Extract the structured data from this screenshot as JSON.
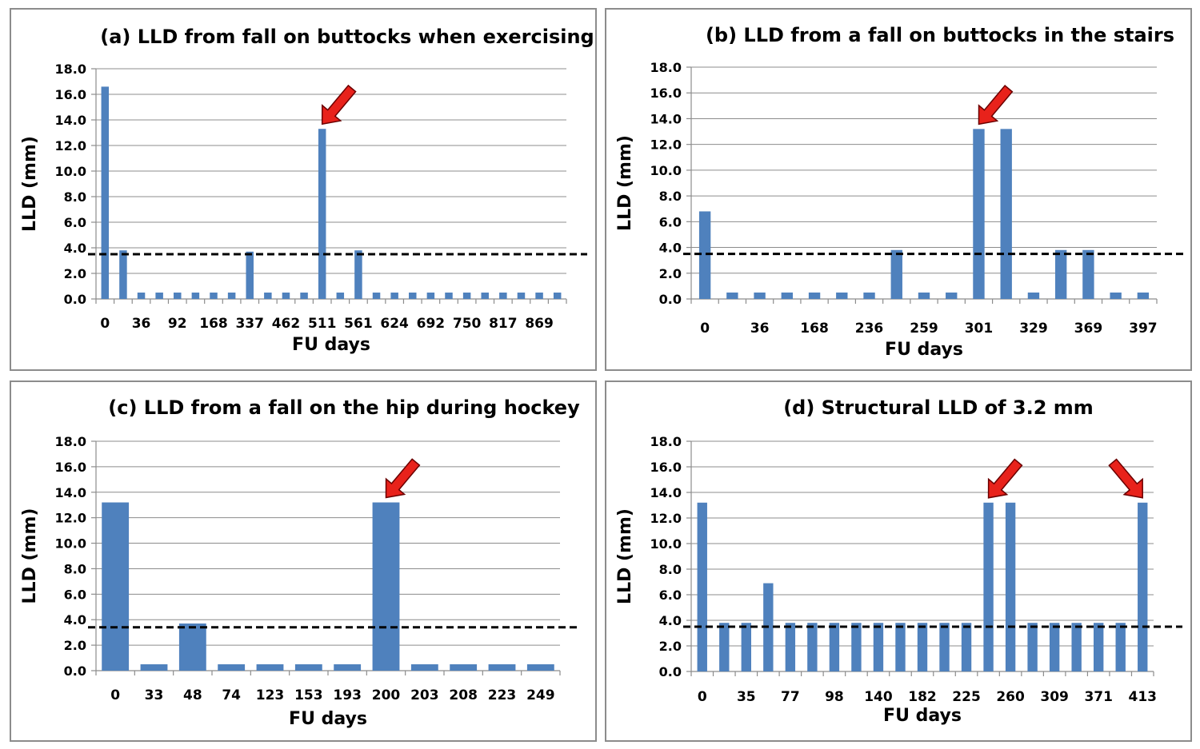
{
  "chart_data": [
    {
      "id": "a",
      "type": "bar",
      "title": "(a) LLD from fall on buttocks when exercising",
      "xlabel": "FU days",
      "ylabel": "LLD (mm)",
      "ylim": [
        0,
        18
      ],
      "yticks": [
        "0.0",
        "2.0",
        "4.0",
        "6.0",
        "8.0",
        "10.0",
        "12.0",
        "14.0",
        "16.0",
        "18.0"
      ],
      "categories": [
        "0",
        "",
        "36",
        "",
        "92",
        "",
        "168",
        "",
        "337",
        "",
        "462",
        "",
        "511",
        "",
        "561",
        "",
        "624",
        "",
        "692",
        "",
        "750",
        "",
        "817",
        "",
        "869",
        ""
      ],
      "values": [
        16.6,
        3.8,
        0.5,
        0.5,
        0.5,
        0.5,
        0.5,
        0.5,
        3.7,
        0.5,
        0.5,
        0.5,
        13.3,
        0.5,
        3.8,
        0.5,
        0.5,
        0.5,
        0.5,
        0.5,
        0.5,
        0.5,
        0.5,
        0.5,
        0.5,
        0.5
      ],
      "threshold": 3.5,
      "arrows": [
        12
      ]
    },
    {
      "id": "b",
      "type": "bar",
      "title": "(b) LLD from a fall on buttocks in the stairs",
      "xlabel": "FU days",
      "ylabel": "LLD (mm)",
      "ylim": [
        0,
        18
      ],
      "yticks": [
        "0.0",
        "2.0",
        "4.0",
        "6.0",
        "8.0",
        "10.0",
        "12.0",
        "14.0",
        "16.0",
        "18.0"
      ],
      "categories": [
        "0",
        "",
        "36",
        "",
        "168",
        "",
        "236",
        "",
        "259",
        "",
        "301",
        "",
        "329",
        "",
        "369",
        "",
        "397"
      ],
      "values": [
        6.8,
        0.5,
        0.5,
        0.5,
        0.5,
        0.5,
        0.5,
        3.8,
        0.5,
        0.5,
        13.2,
        13.2,
        0.5,
        3.8,
        3.8,
        0.5,
        0.5
      ],
      "threshold": 3.5,
      "arrows": [
        10
      ]
    },
    {
      "id": "c",
      "type": "bar",
      "title": "(c) LLD from a fall on the hip during hockey",
      "xlabel": "FU days",
      "ylabel": "LLD (mm)",
      "ylim": [
        0,
        18
      ],
      "yticks": [
        "0.0",
        "2.0",
        "4.0",
        "6.0",
        "8.0",
        "10.0",
        "12.0",
        "14.0",
        "16.0",
        "18.0"
      ],
      "categories": [
        "0",
        "33",
        "48",
        "74",
        "123",
        "153",
        "193",
        "200",
        "203",
        "208",
        "223",
        "249"
      ],
      "values": [
        13.2,
        0.5,
        3.7,
        0.5,
        0.5,
        0.5,
        0.5,
        13.2,
        0.5,
        0.5,
        0.5,
        0.5
      ],
      "threshold": 3.4,
      "arrows": [
        7
      ]
    },
    {
      "id": "d",
      "type": "bar",
      "title": "(d) Structural LLD of 3.2 mm",
      "xlabel": "FU days",
      "ylabel": "LLD (mm)",
      "ylim": [
        0,
        18
      ],
      "yticks": [
        "0.0",
        "2.0",
        "4.0",
        "6.0",
        "8.0",
        "10.0",
        "12.0",
        "14.0",
        "16.0",
        "18.0"
      ],
      "categories": [
        "0",
        "",
        "35",
        "",
        "77",
        "",
        "98",
        "",
        "140",
        "",
        "182",
        "",
        "225",
        "",
        "260",
        "",
        "309",
        "",
        "371",
        "",
        "413"
      ],
      "values": [
        13.2,
        3.8,
        3.8,
        6.9,
        3.8,
        3.8,
        3.8,
        3.8,
        3.8,
        3.8,
        3.8,
        3.8,
        3.8,
        13.2,
        13.2,
        3.8,
        3.8,
        3.8,
        3.8,
        3.8,
        13.2
      ],
      "threshold": 3.5,
      "arrows": [
        13,
        20
      ]
    }
  ]
}
